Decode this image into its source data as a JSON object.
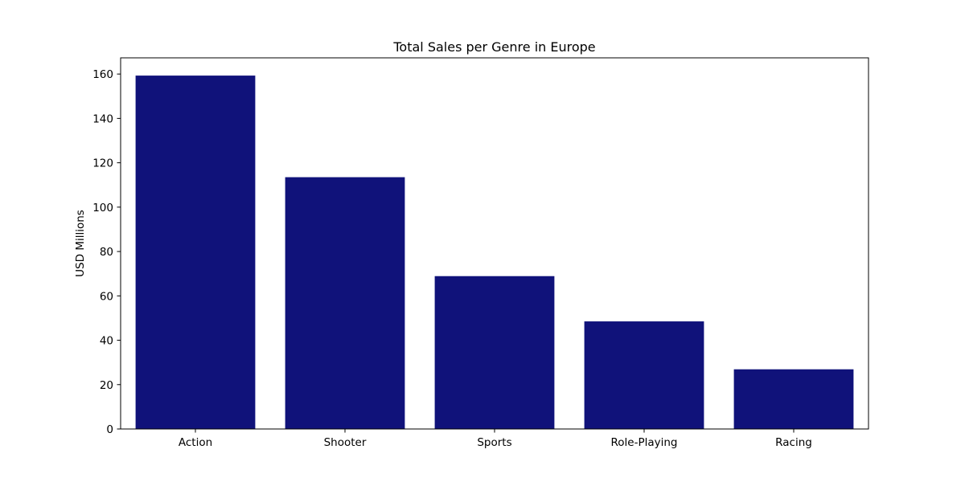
{
  "chart_data": {
    "type": "bar",
    "title": "Total Sales per Genre in Europe",
    "xlabel": "",
    "ylabel": "USD Millions",
    "categories": [
      "Action",
      "Shooter",
      "Sports",
      "Role-Playing",
      "Racing"
    ],
    "values": [
      159.3,
      113.5,
      68.9,
      48.5,
      26.9
    ],
    "ylim": [
      0,
      167.3
    ],
    "yticks": [
      0,
      20,
      40,
      60,
      80,
      100,
      120,
      140,
      160
    ],
    "bar_color": "#10127a",
    "grid": false,
    "legend": "none"
  }
}
